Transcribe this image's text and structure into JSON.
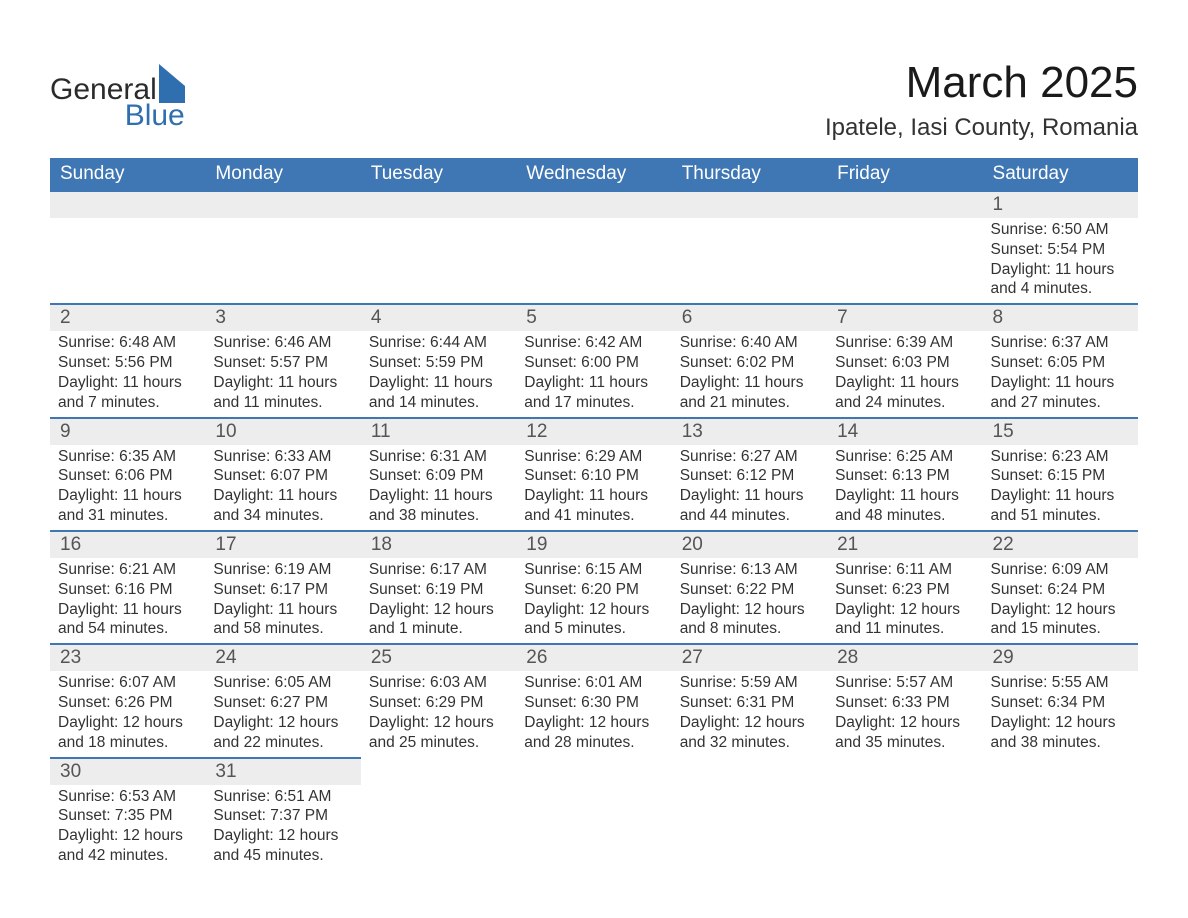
{
  "logo": {
    "general": "General",
    "blue": "Blue"
  },
  "title": "March 2025",
  "location": "Ipatele, Iasi County, Romania",
  "colors": {
    "header_bg": "#3f76b4",
    "header_text": "#ffffff",
    "daynum_bg": "#ededed",
    "row_divider": "#3f76b4",
    "body_text": "#333333",
    "page_bg": "#ffffff",
    "logo_blue": "#2f6fb0"
  },
  "typography": {
    "title_fontsize": 44,
    "location_fontsize": 24,
    "weekday_fontsize": 19,
    "daynum_fontsize": 19,
    "data_fontsize": 15.5
  },
  "weekdays": [
    "Sunday",
    "Monday",
    "Tuesday",
    "Wednesday",
    "Thursday",
    "Friday",
    "Saturday"
  ],
  "weeks": [
    [
      null,
      null,
      null,
      null,
      null,
      null,
      {
        "n": "1",
        "sunrise": "Sunrise: 6:50 AM",
        "sunset": "Sunset: 5:54 PM",
        "dl1": "Daylight: 11 hours",
        "dl2": "and 4 minutes."
      }
    ],
    [
      {
        "n": "2",
        "sunrise": "Sunrise: 6:48 AM",
        "sunset": "Sunset: 5:56 PM",
        "dl1": "Daylight: 11 hours",
        "dl2": "and 7 minutes."
      },
      {
        "n": "3",
        "sunrise": "Sunrise: 6:46 AM",
        "sunset": "Sunset: 5:57 PM",
        "dl1": "Daylight: 11 hours",
        "dl2": "and 11 minutes."
      },
      {
        "n": "4",
        "sunrise": "Sunrise: 6:44 AM",
        "sunset": "Sunset: 5:59 PM",
        "dl1": "Daylight: 11 hours",
        "dl2": "and 14 minutes."
      },
      {
        "n": "5",
        "sunrise": "Sunrise: 6:42 AM",
        "sunset": "Sunset: 6:00 PM",
        "dl1": "Daylight: 11 hours",
        "dl2": "and 17 minutes."
      },
      {
        "n": "6",
        "sunrise": "Sunrise: 6:40 AM",
        "sunset": "Sunset: 6:02 PM",
        "dl1": "Daylight: 11 hours",
        "dl2": "and 21 minutes."
      },
      {
        "n": "7",
        "sunrise": "Sunrise: 6:39 AM",
        "sunset": "Sunset: 6:03 PM",
        "dl1": "Daylight: 11 hours",
        "dl2": "and 24 minutes."
      },
      {
        "n": "8",
        "sunrise": "Sunrise: 6:37 AM",
        "sunset": "Sunset: 6:05 PM",
        "dl1": "Daylight: 11 hours",
        "dl2": "and 27 minutes."
      }
    ],
    [
      {
        "n": "9",
        "sunrise": "Sunrise: 6:35 AM",
        "sunset": "Sunset: 6:06 PM",
        "dl1": "Daylight: 11 hours",
        "dl2": "and 31 minutes."
      },
      {
        "n": "10",
        "sunrise": "Sunrise: 6:33 AM",
        "sunset": "Sunset: 6:07 PM",
        "dl1": "Daylight: 11 hours",
        "dl2": "and 34 minutes."
      },
      {
        "n": "11",
        "sunrise": "Sunrise: 6:31 AM",
        "sunset": "Sunset: 6:09 PM",
        "dl1": "Daylight: 11 hours",
        "dl2": "and 38 minutes."
      },
      {
        "n": "12",
        "sunrise": "Sunrise: 6:29 AM",
        "sunset": "Sunset: 6:10 PM",
        "dl1": "Daylight: 11 hours",
        "dl2": "and 41 minutes."
      },
      {
        "n": "13",
        "sunrise": "Sunrise: 6:27 AM",
        "sunset": "Sunset: 6:12 PM",
        "dl1": "Daylight: 11 hours",
        "dl2": "and 44 minutes."
      },
      {
        "n": "14",
        "sunrise": "Sunrise: 6:25 AM",
        "sunset": "Sunset: 6:13 PM",
        "dl1": "Daylight: 11 hours",
        "dl2": "and 48 minutes."
      },
      {
        "n": "15",
        "sunrise": "Sunrise: 6:23 AM",
        "sunset": "Sunset: 6:15 PM",
        "dl1": "Daylight: 11 hours",
        "dl2": "and 51 minutes."
      }
    ],
    [
      {
        "n": "16",
        "sunrise": "Sunrise: 6:21 AM",
        "sunset": "Sunset: 6:16 PM",
        "dl1": "Daylight: 11 hours",
        "dl2": "and 54 minutes."
      },
      {
        "n": "17",
        "sunrise": "Sunrise: 6:19 AM",
        "sunset": "Sunset: 6:17 PM",
        "dl1": "Daylight: 11 hours",
        "dl2": "and 58 minutes."
      },
      {
        "n": "18",
        "sunrise": "Sunrise: 6:17 AM",
        "sunset": "Sunset: 6:19 PM",
        "dl1": "Daylight: 12 hours",
        "dl2": "and 1 minute."
      },
      {
        "n": "19",
        "sunrise": "Sunrise: 6:15 AM",
        "sunset": "Sunset: 6:20 PM",
        "dl1": "Daylight: 12 hours",
        "dl2": "and 5 minutes."
      },
      {
        "n": "20",
        "sunrise": "Sunrise: 6:13 AM",
        "sunset": "Sunset: 6:22 PM",
        "dl1": "Daylight: 12 hours",
        "dl2": "and 8 minutes."
      },
      {
        "n": "21",
        "sunrise": "Sunrise: 6:11 AM",
        "sunset": "Sunset: 6:23 PM",
        "dl1": "Daylight: 12 hours",
        "dl2": "and 11 minutes."
      },
      {
        "n": "22",
        "sunrise": "Sunrise: 6:09 AM",
        "sunset": "Sunset: 6:24 PM",
        "dl1": "Daylight: 12 hours",
        "dl2": "and 15 minutes."
      }
    ],
    [
      {
        "n": "23",
        "sunrise": "Sunrise: 6:07 AM",
        "sunset": "Sunset: 6:26 PM",
        "dl1": "Daylight: 12 hours",
        "dl2": "and 18 minutes."
      },
      {
        "n": "24",
        "sunrise": "Sunrise: 6:05 AM",
        "sunset": "Sunset: 6:27 PM",
        "dl1": "Daylight: 12 hours",
        "dl2": "and 22 minutes."
      },
      {
        "n": "25",
        "sunrise": "Sunrise: 6:03 AM",
        "sunset": "Sunset: 6:29 PM",
        "dl1": "Daylight: 12 hours",
        "dl2": "and 25 minutes."
      },
      {
        "n": "26",
        "sunrise": "Sunrise: 6:01 AM",
        "sunset": "Sunset: 6:30 PM",
        "dl1": "Daylight: 12 hours",
        "dl2": "and 28 minutes."
      },
      {
        "n": "27",
        "sunrise": "Sunrise: 5:59 AM",
        "sunset": "Sunset: 6:31 PM",
        "dl1": "Daylight: 12 hours",
        "dl2": "and 32 minutes."
      },
      {
        "n": "28",
        "sunrise": "Sunrise: 5:57 AM",
        "sunset": "Sunset: 6:33 PM",
        "dl1": "Daylight: 12 hours",
        "dl2": "and 35 minutes."
      },
      {
        "n": "29",
        "sunrise": "Sunrise: 5:55 AM",
        "sunset": "Sunset: 6:34 PM",
        "dl1": "Daylight: 12 hours",
        "dl2": "and 38 minutes."
      }
    ],
    [
      {
        "n": "30",
        "sunrise": "Sunrise: 6:53 AM",
        "sunset": "Sunset: 7:35 PM",
        "dl1": "Daylight: 12 hours",
        "dl2": "and 42 minutes."
      },
      {
        "n": "31",
        "sunrise": "Sunrise: 6:51 AM",
        "sunset": "Sunset: 7:37 PM",
        "dl1": "Daylight: 12 hours",
        "dl2": "and 45 minutes."
      },
      null,
      null,
      null,
      null,
      null
    ]
  ]
}
